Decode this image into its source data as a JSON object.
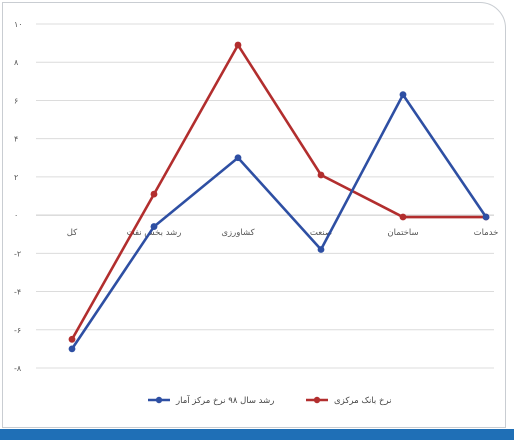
{
  "chart_data": {
    "type": "line",
    "title": "",
    "xlabel": "",
    "ylabel": "",
    "ylim": [
      -8,
      10
    ],
    "y_ticks": [
      -8,
      -6,
      -4,
      -2,
      0,
      2,
      4,
      6,
      8,
      10
    ],
    "y_tick_labels": [
      "-۸",
      "-۶",
      "-۴",
      "-۲",
      "۰",
      "۲",
      "۴",
      "۶",
      "۸",
      "۱۰"
    ],
    "categories": [
      "کل",
      "رشد بخش نفت",
      "کشاورزی",
      "صنعت",
      "ساختمان",
      "خدمات"
    ],
    "grid": true,
    "legend_position": "bottom",
    "series": [
      {
        "name": "نرخ بانک مرکزی",
        "color": "#b22e2e",
        "values": [
          -6.5,
          1.1,
          8.9,
          2.1,
          -0.1,
          -0.1
        ]
      },
      {
        "name": "رشد سال ۹۸ نرخ مرکز آمار",
        "color": "#2e4fa3",
        "values": [
          -7.0,
          -0.6,
          3.0,
          -1.8,
          6.3,
          -0.1
        ]
      }
    ]
  }
}
